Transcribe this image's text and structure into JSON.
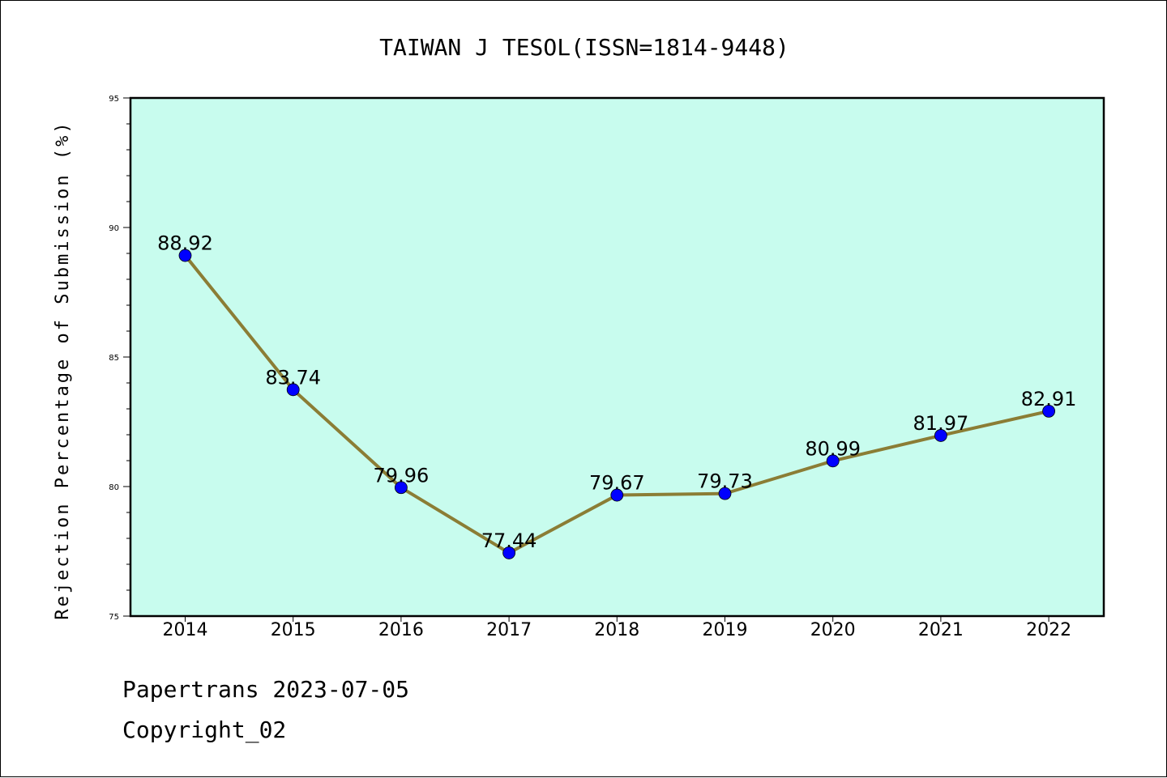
{
  "chart_data": {
    "type": "line",
    "title": "TAIWAN J TESOL(ISSN=1814-9448)",
    "xlabel": "",
    "ylabel": "Rejection Percentage of Submission (%)",
    "categories": [
      "2014",
      "2015",
      "2016",
      "2017",
      "2018",
      "2019",
      "2020",
      "2021",
      "2022"
    ],
    "series": [
      {
        "values": [
          88.92,
          83.74,
          79.96,
          77.44,
          79.67,
          79.73,
          80.99,
          81.97,
          82.91
        ],
        "labels": [
          "88.92",
          "83.74",
          "79.96",
          "77.44",
          "79.67",
          "79.73",
          "80.99",
          "81.97",
          "82.91"
        ]
      }
    ],
    "ylim": [
      75,
      95
    ],
    "yticks": [
      "75",
      "80",
      "85",
      "90",
      "95"
    ],
    "grid": false,
    "colors": {
      "plot_background": "#c8fcee",
      "line": "#8b7d35",
      "marker": "#0000ff"
    }
  },
  "footer": {
    "line1": "Papertrans 2023-07-05",
    "line2": "Copyright_02"
  }
}
